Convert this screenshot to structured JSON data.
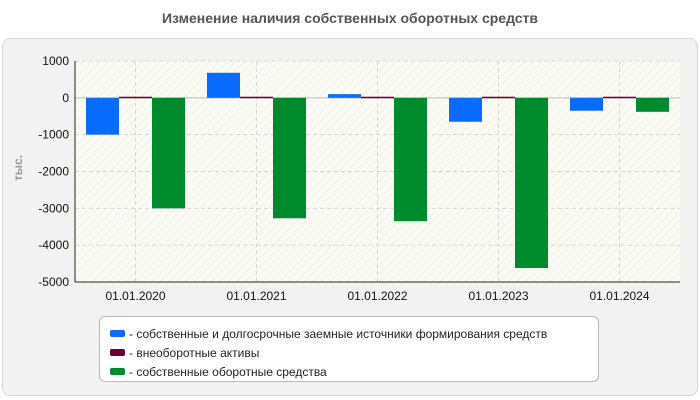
{
  "title": "Изменение наличия собственных оборотных средств",
  "chart_data": {
    "type": "bar",
    "title": "Изменение наличия собственных оборотных средств",
    "xlabel": "",
    "ylabel": "тыс.",
    "ylim": [
      -5000,
      1000
    ],
    "yticks": [
      1000,
      0,
      -1000,
      -2000,
      -3000,
      -4000,
      -5000
    ],
    "grid": true,
    "legend_position": "bottom",
    "categories": [
      "01.01.2020",
      "01.01.2021",
      "01.01.2022",
      "01.01.2023",
      "01.01.2024"
    ],
    "series": [
      {
        "name": "- собственные и долгосрочные заемные источники формирования средств",
        "color": "#0a6cff",
        "values": [
          -1000,
          680,
          100,
          -650,
          -350
        ]
      },
      {
        "name": "- внеоборотные активы",
        "color": "#6b0033",
        "values": [
          30,
          30,
          30,
          30,
          30
        ]
      },
      {
        "name": "- собственные оборотные средства",
        "color": "#008a2e",
        "values": [
          -3000,
          -3270,
          -3350,
          -4620,
          -380
        ]
      }
    ]
  }
}
